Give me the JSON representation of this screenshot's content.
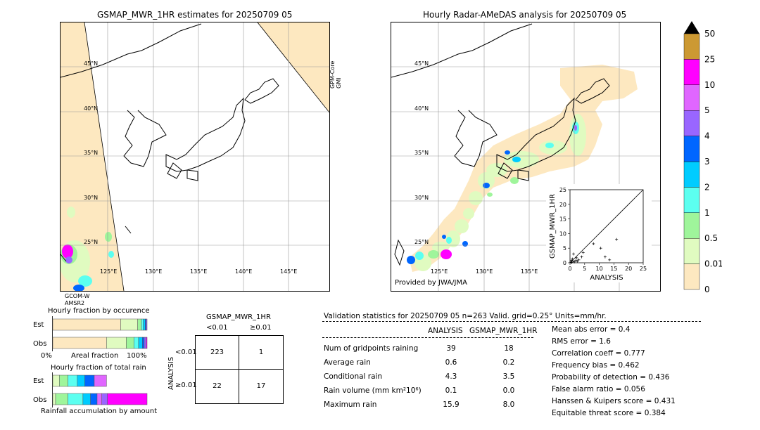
{
  "left_map": {
    "title": "GSMAP_MWR_1HR estimates for 20250709 05",
    "lat_labels": [
      "45°N",
      "40°N",
      "35°N",
      "30°N",
      "25°N"
    ],
    "lon_labels": [
      "125°E",
      "130°E",
      "135°E",
      "140°E",
      "145°E"
    ],
    "sensor_right": "GPM-Core\nGMI",
    "sensor_bottom_line1": "GCOM-W",
    "sensor_bottom_line2": "AMSR2"
  },
  "right_map": {
    "title": "Hourly Radar-AMeDAS analysis for 20250709 05",
    "lat_labels": [
      "45°N",
      "40°N",
      "35°N",
      "30°N",
      "25°N"
    ],
    "lon_labels": [
      "125°E",
      "130°E",
      "135°E"
    ],
    "credit": "Provided by JWA/JMA"
  },
  "colorbar": {
    "tick_labels": [
      "0",
      "0.01",
      "0.5",
      "1",
      "2",
      "3",
      "4",
      "5",
      "10",
      "25",
      "50"
    ],
    "colors": [
      "#fde8c0",
      "#e0fbc0",
      "#9ff59b",
      "#5cfff0",
      "#00ccff",
      "#0066ff",
      "#9966ff",
      "#e066ff",
      "#ff00ff",
      "#cc9933"
    ],
    "extend_color": "#000000"
  },
  "scatter_inset": {
    "xlabel": "ANALYSIS",
    "ylabel": "GSMAP_MWR_1HR",
    "x_ticks": [
      "0",
      "5",
      "10",
      "15",
      "20",
      "25"
    ],
    "y_ticks": [
      "0",
      "5",
      "10",
      "15",
      "20",
      "25"
    ]
  },
  "fraction_occurrence": {
    "title": "Hourly fraction by occurence",
    "row_labels": [
      "Est",
      "Obs"
    ],
    "axis_left": "0%",
    "axis_mid": "Areal fraction",
    "axis_right": "100%"
  },
  "fraction_total": {
    "title": "Hourly fraction of total rain",
    "row_labels": [
      "Est",
      "Obs"
    ],
    "axis_caption": "Rainfall accumulation by amount"
  },
  "contingency": {
    "title": "GSMAP_MWR_1HR",
    "col_labels": [
      "<0.01",
      "≥0.01"
    ],
    "row_axis": "ANALYSIS",
    "row_labels": [
      "<0.01",
      "≥0.01"
    ],
    "cells": [
      "223",
      "1",
      "22",
      "17"
    ]
  },
  "validation": {
    "header": "Validation statistics for 20250709 05  n=263 Valid. grid=0.25° Units=mm/hr.",
    "col_analysis": "ANALYSIS",
    "col_gsmap": "GSMAP_MWR_1HR",
    "rows": [
      {
        "label": "Num of gridpoints raining",
        "analysis": "39",
        "gsmap": "18"
      },
      {
        "label": "Average rain",
        "analysis": "0.6",
        "gsmap": "0.2"
      },
      {
        "label": "Conditional rain",
        "analysis": "4.3",
        "gsmap": "3.5"
      },
      {
        "label": "Rain volume (mm km²10⁶)",
        "analysis": "0.1",
        "gsmap": "0.0"
      },
      {
        "label": "Maximum rain",
        "analysis": "15.9",
        "gsmap": "8.0"
      }
    ],
    "scores": [
      "Mean abs error =    0.4",
      "RMS error =    1.6",
      "Correlation coeff =  0.777",
      "Frequency bias =  0.462",
      "Probability of detection =  0.436",
      "False alarm ratio =  0.056",
      "Hanssen & Kuipers score =  0.431",
      "Equitable threat score =  0.384"
    ]
  },
  "chart_data": [
    {
      "type": "scatter",
      "xlabel": "ANALYSIS",
      "ylabel": "GSMAP_MWR_1HR",
      "xlim": [
        0,
        25
      ],
      "ylim": [
        0,
        25
      ],
      "points": [
        [
          0.3,
          0.2
        ],
        [
          0.6,
          0.1
        ],
        [
          1.0,
          0.5
        ],
        [
          1.5,
          0.3
        ],
        [
          2.0,
          0.8
        ],
        [
          2.5,
          0.5
        ],
        [
          3.0,
          1.0
        ],
        [
          4.0,
          2.0
        ],
        [
          4.5,
          3.5
        ],
        [
          1.2,
          3.0
        ],
        [
          2.2,
          1.7
        ],
        [
          0.8,
          1.3
        ],
        [
          8.0,
          6.5
        ],
        [
          10.5,
          5.0
        ],
        [
          12.0,
          2.0
        ],
        [
          13.5,
          1.0
        ],
        [
          15.9,
          8.0
        ],
        [
          0.5,
          0.8
        ]
      ]
    },
    {
      "type": "bar",
      "title": "Hourly fraction by occurence",
      "categories": [
        "Est",
        "Obs"
      ],
      "series": [
        {
          "values": [
            0.72,
            0.57
          ]
        },
        {
          "values": [
            0.18,
            0.21
          ]
        },
        {
          "values": [
            0.04,
            0.08
          ]
        },
        {
          "values": [
            0.02,
            0.05
          ]
        },
        {
          "values": [
            0.02,
            0.04
          ]
        },
        {
          "values": [
            0.01,
            0.02
          ]
        },
        {
          "values": [
            0.01,
            0.02
          ]
        },
        {
          "values": [
            0.0,
            0.01
          ]
        }
      ]
    },
    {
      "type": "bar",
      "title": "Hourly fraction of total rain",
      "categories": [
        "Est",
        "Obs"
      ],
      "series": [
        {
          "values": [
            0.07,
            0.03
          ]
        },
        {
          "values": [
            0.09,
            0.13
          ]
        },
        {
          "values": [
            0.1,
            0.16
          ]
        },
        {
          "values": [
            0.08,
            0.08
          ]
        },
        {
          "values": [
            0.1,
            0.07
          ]
        },
        {
          "values": [
            0.13,
            0.05
          ]
        },
        {
          "values": [
            0.0,
            0.06
          ]
        },
        {
          "values": [
            0.0,
            0.42
          ]
        }
      ]
    }
  ]
}
